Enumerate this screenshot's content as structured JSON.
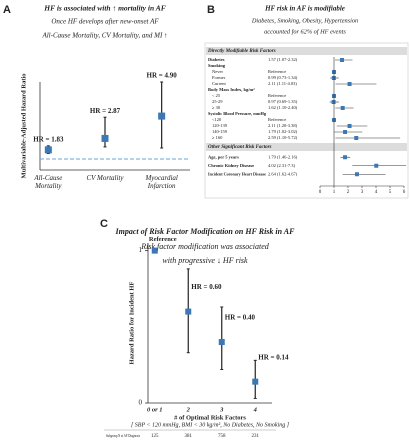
{
  "chart_data": [
    {
      "type": "dot-errorbar",
      "panel": "A",
      "title": "HF is associated with ↑ mortality in AF",
      "subtitle": [
        "Once HF develops after new-onset AF",
        "All-Cause Mortality, CV Mortality, and MI ↑"
      ],
      "ylabel": "Multivariable-Adjusted Hazard Ratio",
      "categories": [
        "All-Cause Mortality",
        "CV Mortality",
        "Myocardial Infarction"
      ],
      "values": [
        1.83,
        2.87,
        4.9
      ],
      "value_labels": [
        "HR = 1.83",
        "HR = 2.87",
        "HR = 4.90"
      ],
      "lower": [
        1.5,
        2.1,
        2.0
      ],
      "upper": [
        2.2,
        4.8,
        8.0
      ],
      "ylim": [
        0,
        8
      ],
      "reference_line": 1,
      "color": "#3b78b5"
    },
    {
      "type": "forest",
      "panel": "B",
      "title": "HF risk in AF is modifiable",
      "subtitle": [
        "Diabetes, Smoking, Obesity, Hypertension",
        "accounted for 62% of HF events"
      ],
      "sections": [
        {
          "title": "Directly Modifiable Risk Factors",
          "rows": [
            {
              "label": "Diabetes",
              "text": "1.57 (1.07-2.32)",
              "hr": 1.57,
              "lo": 1.07,
              "hi": 2.32
            },
            {
              "label": "Smoking",
              "levels": [
                {
                  "label": "Never",
                  "text": "Reference",
                  "hr": 1
                },
                {
                  "label": "Former",
                  "text": "0.99 (0.73-1.34)",
                  "hr": 0.99,
                  "lo": 0.73,
                  "hi": 1.34
                },
                {
                  "label": "Current",
                  "text": "2.11 (1.11-4.03)",
                  "hr": 2.11,
                  "lo": 1.11,
                  "hi": 4.03
                }
              ]
            },
            {
              "label": "Body Mass Index, kg/m²",
              "levels": [
                {
                  "label": "< 25",
                  "text": "Reference",
                  "hr": 1
                },
                {
                  "label": "25-29",
                  "text": "0.97 (0.69-1.35)",
                  "hr": 0.97,
                  "lo": 0.69,
                  "hi": 1.35
                },
                {
                  "label": "≥ 30",
                  "text": "1.62 (1.10-2.40)",
                  "hr": 1.62,
                  "lo": 1.1,
                  "hi": 2.4
                }
              ]
            },
            {
              "label": "Systolic Blood Pressure, mmHg",
              "levels": [
                {
                  "label": "<120",
                  "text": "Reference",
                  "hr": 1
                },
                {
                  "label": "120-139",
                  "text": "2.11 (1.20-3.38)",
                  "hr": 2.11,
                  "lo": 1.2,
                  "hi": 3.38
                },
                {
                  "label": "140-159",
                  "text": "1.79 (1.02-3.02)",
                  "hr": 1.79,
                  "lo": 1.02,
                  "hi": 3.02
                },
                {
                  "label": "≥ 160",
                  "text": "2.59 (1.10-5.72)",
                  "hr": 2.59,
                  "lo": 1.1,
                  "hi": 5.72
                }
              ]
            }
          ]
        },
        {
          "title": "Other Significant Risk Factors",
          "rows": [
            {
              "label": "Age, per 5 years",
              "text": "1.79 (1.46-2.16)",
              "hr": 1.79,
              "lo": 1.46,
              "hi": 2.16
            },
            {
              "label": "Chronic Kidney Disease",
              "text": "4.02 (2.31-7.3)",
              "hr": 4.02,
              "lo": 2.31,
              "hi": 7.3
            },
            {
              "label": "Incident Coronary Heart Disease",
              "text": "2.64 (1.62-4.67)",
              "hr": 2.64,
              "lo": 1.62,
              "hi": 4.67
            }
          ]
        }
      ],
      "xlim": [
        0,
        6
      ],
      "xticks": [
        0,
        1,
        2,
        3,
        4,
        5,
        6
      ],
      "reference_line": 1,
      "color": "#3b78b5"
    },
    {
      "type": "dot-errorbar",
      "panel": "C",
      "title": "Impact of Risk Factor Modification on HF Risk in AF",
      "subtitle": [
        "Risk factor modification was associated",
        "with progressive ↓ HF risk"
      ],
      "ylabel": "Hazard Ratio for Incident HF",
      "xlabel": "# of Optimal Risk Factors",
      "note": "[ SBP < 120 mmHg, BMI < 30 kg/m², No Diabetes, No Smoking ]",
      "categories": [
        "0 or 1",
        "2",
        "3",
        "4"
      ],
      "values": [
        1,
        0.6,
        0.4,
        0.14
      ],
      "value_labels": [
        null,
        "HR = 0.60",
        "HR = 0.40",
        "HR = 0.14"
      ],
      "reference_label": "Reference",
      "lower": [
        null,
        0.33,
        0.22,
        0.03
      ],
      "upper": [
        null,
        0.88,
        0.63,
        0.28
      ],
      "ylim": [
        0,
        1.05
      ],
      "yticks": [
        0,
        1
      ],
      "color": "#3b78b5",
      "table": {
        "label": "Subgroup N at AF Diagnosis",
        "values": [
          125,
          381,
          758,
          231
        ]
      }
    }
  ]
}
